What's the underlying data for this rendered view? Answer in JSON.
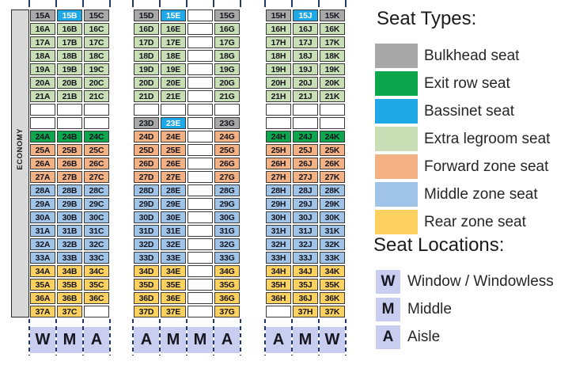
{
  "colors": {
    "bulkhead": "#a8a8a8",
    "exit": "#0ba64e",
    "bassinet": "#1ea9e6",
    "extra": "#c8dfb5",
    "forward": "#f4b183",
    "middle": "#9fc4e8",
    "rear": "#fdd160",
    "location_box": "#c9cdf0",
    "dash_line": "#213a6b",
    "economy_bar": "#d9d9d9"
  },
  "seat_map": {
    "economy_label": "ECONOMY",
    "blocks": [
      {
        "name": "left",
        "letters": [
          "W",
          "M",
          "A"
        ],
        "rows": [
          [
            [
              "15A",
              "bulkhead"
            ],
            [
              "15B",
              "bassinet"
            ],
            [
              "15C",
              "bulkhead"
            ]
          ],
          [
            [
              "16A",
              "extra"
            ],
            [
              "16B",
              "extra"
            ],
            [
              "16C",
              "extra"
            ]
          ],
          [
            [
              "17A",
              "extra"
            ],
            [
              "17B",
              "extra"
            ],
            [
              "17C",
              "extra"
            ]
          ],
          [
            [
              "18A",
              "extra"
            ],
            [
              "18B",
              "extra"
            ],
            [
              "18C",
              "extra"
            ]
          ],
          [
            [
              "19A",
              "extra"
            ],
            [
              "19B",
              "extra"
            ],
            [
              "19C",
              "extra"
            ]
          ],
          [
            [
              "20A",
              "extra"
            ],
            [
              "20B",
              "extra"
            ],
            [
              "20C",
              "extra"
            ]
          ],
          [
            [
              "21A",
              "extra"
            ],
            [
              "21B",
              "extra"
            ],
            [
              "21C",
              "extra"
            ]
          ],
          [
            null,
            null,
            null
          ],
          [
            null,
            null,
            null
          ],
          [
            [
              "24A",
              "exit"
            ],
            [
              "24B",
              "exit"
            ],
            [
              "24C",
              "exit"
            ]
          ],
          [
            [
              "25A",
              "forward"
            ],
            [
              "25B",
              "forward"
            ],
            [
              "25C",
              "forward"
            ]
          ],
          [
            [
              "26A",
              "forward"
            ],
            [
              "26B",
              "forward"
            ],
            [
              "26C",
              "forward"
            ]
          ],
          [
            [
              "27A",
              "forward"
            ],
            [
              "27B",
              "forward"
            ],
            [
              "27C",
              "forward"
            ]
          ],
          [
            [
              "28A",
              "middle"
            ],
            [
              "28B",
              "middle"
            ],
            [
              "28C",
              "middle"
            ]
          ],
          [
            [
              "29A",
              "middle"
            ],
            [
              "29B",
              "middle"
            ],
            [
              "29C",
              "middle"
            ]
          ],
          [
            [
              "30A",
              "middle"
            ],
            [
              "30B",
              "middle"
            ],
            [
              "30C",
              "middle"
            ]
          ],
          [
            [
              "31A",
              "middle"
            ],
            [
              "31B",
              "middle"
            ],
            [
              "31C",
              "middle"
            ]
          ],
          [
            [
              "32A",
              "middle"
            ],
            [
              "32B",
              "middle"
            ],
            [
              "32C",
              "middle"
            ]
          ],
          [
            [
              "33A",
              "middle"
            ],
            [
              "33B",
              "middle"
            ],
            [
              "33C",
              "middle"
            ]
          ],
          [
            [
              "34A",
              "rear"
            ],
            [
              "34B",
              "rear"
            ],
            [
              "34C",
              "rear"
            ]
          ],
          [
            [
              "35A",
              "rear"
            ],
            [
              "35B",
              "rear"
            ],
            [
              "35C",
              "rear"
            ]
          ],
          [
            [
              "36A",
              "rear"
            ],
            [
              "36B",
              "rear"
            ],
            [
              "36C",
              "rear"
            ]
          ],
          [
            [
              "37A",
              "rear"
            ],
            [
              "37C",
              "rear"
            ],
            null
          ]
        ]
      },
      {
        "name": "center",
        "letters": [
          "A",
          "M",
          "M",
          "A"
        ],
        "rows": [
          [
            [
              "15D",
              "bulkhead"
            ],
            [
              "15E",
              "bassinet"
            ],
            null,
            [
              "15G",
              "bulkhead"
            ]
          ],
          [
            [
              "16D",
              "extra"
            ],
            [
              "16E",
              "extra"
            ],
            null,
            [
              "16G",
              "extra"
            ]
          ],
          [
            [
              "17D",
              "extra"
            ],
            [
              "17E",
              "extra"
            ],
            null,
            [
              "17G",
              "extra"
            ]
          ],
          [
            [
              "18D",
              "extra"
            ],
            [
              "18E",
              "extra"
            ],
            null,
            [
              "18G",
              "extra"
            ]
          ],
          [
            [
              "19D",
              "extra"
            ],
            [
              "19E",
              "extra"
            ],
            null,
            [
              "19G",
              "extra"
            ]
          ],
          [
            [
              "20D",
              "extra"
            ],
            [
              "20E",
              "extra"
            ],
            null,
            [
              "20G",
              "extra"
            ]
          ],
          [
            [
              "21D",
              "extra"
            ],
            [
              "21E",
              "extra"
            ],
            null,
            [
              "21G",
              "extra"
            ]
          ],
          [
            null,
            null,
            null,
            null
          ],
          [
            [
              "23D",
              "bulkhead"
            ],
            [
              "23E",
              "bassinet"
            ],
            null,
            [
              "23G",
              "bulkhead"
            ]
          ],
          [
            [
              "24D",
              "forward"
            ],
            [
              "24E",
              "forward"
            ],
            null,
            [
              "24G",
              "forward"
            ]
          ],
          [
            [
              "25D",
              "forward"
            ],
            [
              "25E",
              "forward"
            ],
            null,
            [
              "25G",
              "forward"
            ]
          ],
          [
            [
              "26D",
              "forward"
            ],
            [
              "26E",
              "forward"
            ],
            null,
            [
              "26G",
              "forward"
            ]
          ],
          [
            [
              "27D",
              "forward"
            ],
            [
              "27E",
              "forward"
            ],
            null,
            [
              "27G",
              "forward"
            ]
          ],
          [
            [
              "28D",
              "middle"
            ],
            [
              "28E",
              "middle"
            ],
            null,
            [
              "28G",
              "middle"
            ]
          ],
          [
            [
              "29D",
              "middle"
            ],
            [
              "29E",
              "middle"
            ],
            null,
            [
              "29G",
              "middle"
            ]
          ],
          [
            [
              "30D",
              "middle"
            ],
            [
              "30E",
              "middle"
            ],
            null,
            [
              "30G",
              "middle"
            ]
          ],
          [
            [
              "31D",
              "middle"
            ],
            [
              "31E",
              "middle"
            ],
            null,
            [
              "31G",
              "middle"
            ]
          ],
          [
            [
              "32D",
              "middle"
            ],
            [
              "32E",
              "middle"
            ],
            null,
            [
              "32G",
              "middle"
            ]
          ],
          [
            [
              "33D",
              "middle"
            ],
            [
              "33E",
              "middle"
            ],
            null,
            [
              "33G",
              "middle"
            ]
          ],
          [
            [
              "34D",
              "rear"
            ],
            [
              "34E",
              "rear"
            ],
            null,
            [
              "34G",
              "rear"
            ]
          ],
          [
            [
              "35D",
              "rear"
            ],
            [
              "35E",
              "rear"
            ],
            null,
            [
              "35G",
              "rear"
            ]
          ],
          [
            [
              "36D",
              "rear"
            ],
            [
              "36E",
              "rear"
            ],
            null,
            [
              "36G",
              "rear"
            ]
          ],
          [
            [
              "37D",
              "rear"
            ],
            [
              "37E",
              "rear"
            ],
            null,
            [
              "37G",
              "rear"
            ]
          ]
        ]
      },
      {
        "name": "right",
        "letters": [
          "A",
          "M",
          "W"
        ],
        "rows": [
          [
            [
              "15H",
              "bulkhead"
            ],
            [
              "15J",
              "bassinet"
            ],
            [
              "15K",
              "bulkhead"
            ]
          ],
          [
            [
              "16H",
              "extra"
            ],
            [
              "16J",
              "extra"
            ],
            [
              "16K",
              "extra"
            ]
          ],
          [
            [
              "17H",
              "extra"
            ],
            [
              "17J",
              "extra"
            ],
            [
              "17K",
              "extra"
            ]
          ],
          [
            [
              "18H",
              "extra"
            ],
            [
              "18J",
              "extra"
            ],
            [
              "18K",
              "extra"
            ]
          ],
          [
            [
              "19H",
              "extra"
            ],
            [
              "19J",
              "extra"
            ],
            [
              "19K",
              "extra"
            ]
          ],
          [
            [
              "20H",
              "extra"
            ],
            [
              "20J",
              "extra"
            ],
            [
              "20K",
              "extra"
            ]
          ],
          [
            [
              "21H",
              "extra"
            ],
            [
              "21J",
              "extra"
            ],
            [
              "21K",
              "extra"
            ]
          ],
          [
            null,
            null,
            null
          ],
          [
            null,
            null,
            null
          ],
          [
            [
              "24H",
              "exit"
            ],
            [
              "24J",
              "exit"
            ],
            [
              "24K",
              "exit"
            ]
          ],
          [
            [
              "25H",
              "forward"
            ],
            [
              "25J",
              "forward"
            ],
            [
              "25K",
              "forward"
            ]
          ],
          [
            [
              "26H",
              "forward"
            ],
            [
              "26J",
              "forward"
            ],
            [
              "26K",
              "forward"
            ]
          ],
          [
            [
              "27H",
              "forward"
            ],
            [
              "27J",
              "forward"
            ],
            [
              "27K",
              "forward"
            ]
          ],
          [
            [
              "28H",
              "middle"
            ],
            [
              "28J",
              "middle"
            ],
            [
              "28K",
              "middle"
            ]
          ],
          [
            [
              "29H",
              "middle"
            ],
            [
              "29J",
              "middle"
            ],
            [
              "29K",
              "middle"
            ]
          ],
          [
            [
              "30H",
              "middle"
            ],
            [
              "30J",
              "middle"
            ],
            [
              "30K",
              "middle"
            ]
          ],
          [
            [
              "31H",
              "middle"
            ],
            [
              "31J",
              "middle"
            ],
            [
              "31K",
              "middle"
            ]
          ],
          [
            [
              "32H",
              "middle"
            ],
            [
              "32J",
              "middle"
            ],
            [
              "32K",
              "middle"
            ]
          ],
          [
            [
              "33H",
              "middle"
            ],
            [
              "33J",
              "middle"
            ],
            [
              "33K",
              "middle"
            ]
          ],
          [
            [
              "34H",
              "rear"
            ],
            [
              "34J",
              "rear"
            ],
            [
              "34K",
              "rear"
            ]
          ],
          [
            [
              "35H",
              "rear"
            ],
            [
              "35J",
              "rear"
            ],
            [
              "35K",
              "rear"
            ]
          ],
          [
            [
              "36H",
              "rear"
            ],
            [
              "36J",
              "rear"
            ],
            [
              "36K",
              "rear"
            ]
          ],
          [
            null,
            [
              "37H",
              "rear"
            ],
            [
              "37K",
              "rear"
            ]
          ]
        ]
      }
    ]
  },
  "legend": {
    "seat_types_title": "Seat Types:",
    "types": [
      {
        "key": "bulkhead",
        "label": "Bulkhead seat",
        "color": "#a8a8a8"
      },
      {
        "key": "exit",
        "label": "Exit row seat",
        "color": "#0ba64e"
      },
      {
        "key": "bassinet",
        "label": "Bassinet seat",
        "color": "#1ea9e6"
      },
      {
        "key": "extra",
        "label": "Extra legroom seat",
        "color": "#c8dfb5"
      },
      {
        "key": "forward",
        "label": "Forward zone seat",
        "color": "#f4b183"
      },
      {
        "key": "middle",
        "label": "Middle zone seat",
        "color": "#9fc4e8"
      },
      {
        "key": "rear",
        "label": "Rear zone seat",
        "color": "#fdd160"
      }
    ],
    "seat_locations_title": "Seat Locations:",
    "locations": [
      {
        "letter": "W",
        "label": "Window / Windowless"
      },
      {
        "letter": "M",
        "label": "Middle"
      },
      {
        "letter": "A",
        "label": "Aisle"
      }
    ]
  }
}
